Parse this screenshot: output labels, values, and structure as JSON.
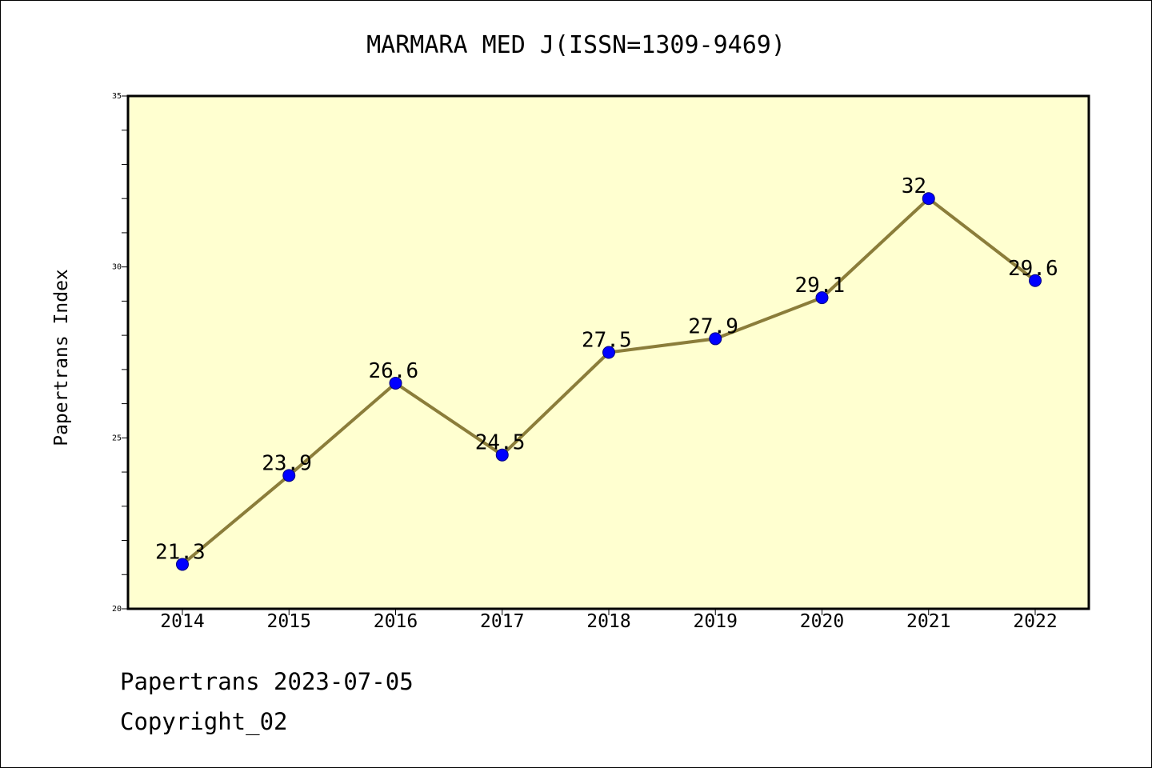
{
  "chart_data": {
    "type": "line",
    "title": "MARMARA MED J(ISSN=1309-9469)",
    "ylabel": "Papertrans Index",
    "xlabel": "",
    "categories": [
      "2014",
      "2015",
      "2016",
      "2017",
      "2018",
      "2019",
      "2020",
      "2021",
      "2022"
    ],
    "values": [
      21.3,
      23.9,
      26.6,
      24.5,
      27.5,
      27.9,
      29.1,
      32,
      29.6
    ],
    "data_labels": [
      "21.3",
      "23.9",
      "26.6",
      "24.5",
      "27.5",
      "27.9",
      "29.1",
      "32",
      "29.6"
    ],
    "ylim": [
      20,
      35
    ],
    "y_ticks": [
      "20",
      "25",
      "30",
      "35"
    ],
    "grid": false,
    "colors": {
      "plot_background": "#ffffd0",
      "line": "#8b7d3a",
      "marker": "#0000ff"
    }
  },
  "footer": {
    "date_line": "Papertrans 2023-07-05",
    "copyright_line": "Copyright_02"
  }
}
